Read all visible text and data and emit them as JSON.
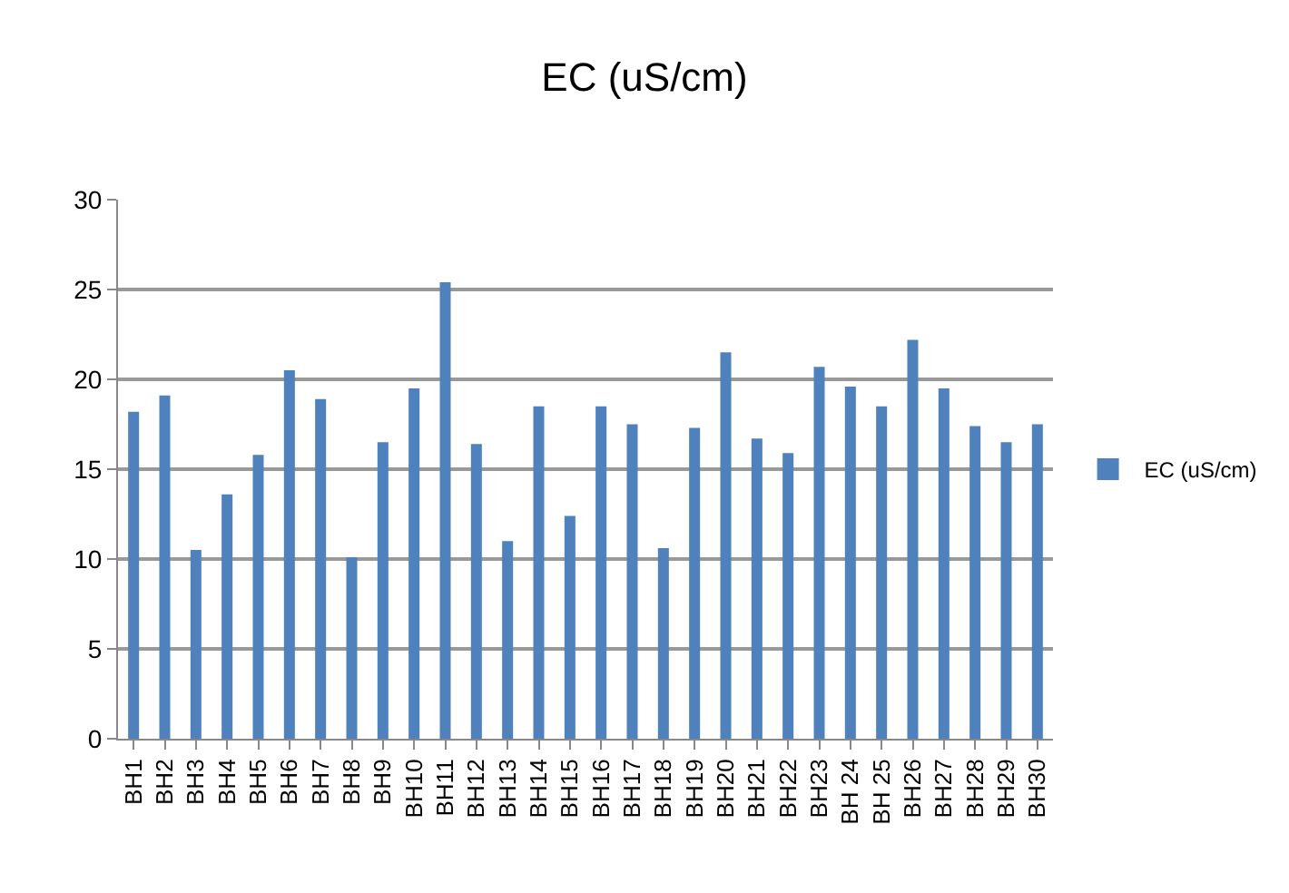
{
  "chart_data": {
    "type": "bar",
    "title": "EC (uS/cm)",
    "categories": [
      "BH1",
      "BH2",
      "BH3",
      "BH4",
      "BH5",
      "BH6",
      "BH7",
      "BH8",
      "BH9",
      "BH10",
      "BH11",
      "BH12",
      "BH13",
      "BH14",
      "BH15",
      "BH16",
      "BH17",
      "BH18",
      "BH19",
      "BH20",
      "BH21",
      "BH22",
      "BH23",
      "BH 24",
      "BH 25",
      "BH26",
      "BH27",
      "BH28",
      "BH29",
      "BH30"
    ],
    "series": [
      {
        "name": "EC (uS/cm)",
        "color": "#4f81bd",
        "values": [
          18.2,
          19.1,
          10.5,
          13.6,
          15.8,
          20.5,
          18.9,
          10.1,
          16.5,
          19.5,
          25.4,
          16.4,
          11.0,
          18.5,
          12.4,
          18.5,
          17.5,
          10.6,
          17.3,
          21.5,
          16.7,
          15.9,
          20.7,
          19.6,
          18.5,
          22.2,
          19.5,
          17.4,
          16.5,
          17.5
        ]
      }
    ],
    "ylim": [
      0,
      30
    ],
    "yticks": [
      0,
      5,
      10,
      15,
      20,
      25,
      30
    ],
    "grid": "y",
    "legend": "right"
  }
}
